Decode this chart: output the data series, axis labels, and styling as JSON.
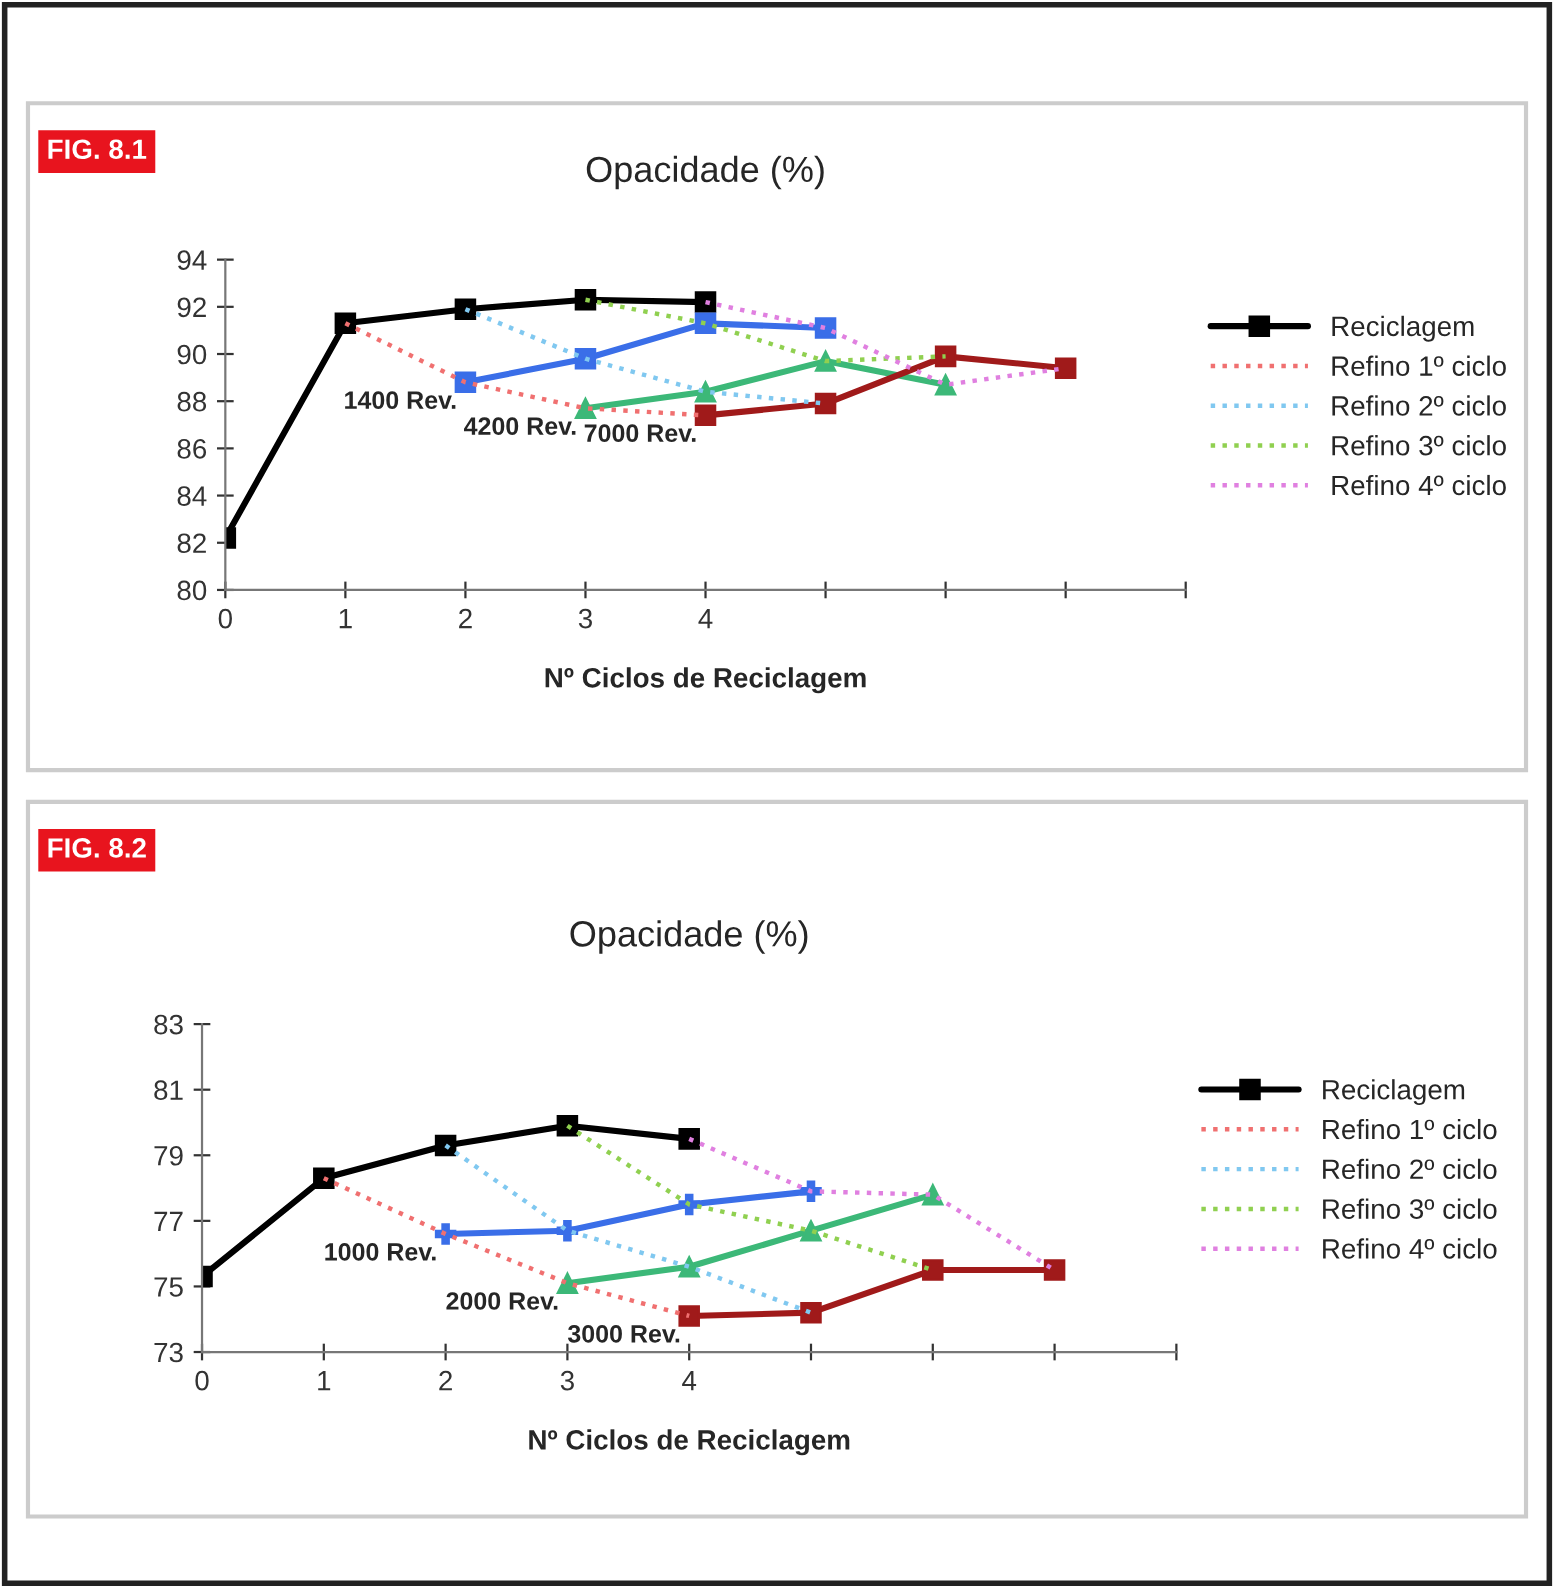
{
  "chart_data": [
    {
      "type": "line",
      "title": "Opacidade (%)",
      "xlabel": "Nº Ciclos de Reciclagem",
      "xlim": [
        0,
        8
      ],
      "xticks": [
        0,
        1,
        2,
        3,
        4,
        {
          "value": 5,
          "label": null
        },
        {
          "value": 6,
          "label": null
        },
        {
          "value": 7,
          "label": null
        },
        {
          "value": 8,
          "label": null
        }
      ],
      "ylim": [
        80,
        94
      ],
      "yticks": [
        80,
        82,
        84,
        86,
        88,
        90,
        92,
        94
      ],
      "grid": false,
      "legend": "right",
      "annotations": [
        "FIG. 8.1",
        {
          "text": "1400 Rev.",
          "x": 2,
          "y": 88.8
        },
        {
          "text": "4200 Rev.",
          "x": 3,
          "y": 87.7
        },
        {
          "text": "7000 Rev.",
          "x": 4,
          "y": 87.4
        }
      ],
      "series": [
        {
          "name": "Reciclagem",
          "color": "#000000",
          "x": [
            0,
            1,
            2,
            3,
            4
          ],
          "values": [
            82.2,
            91.3,
            91.9,
            92.3,
            92.2
          ],
          "marker": "square",
          "line_style": "solid"
        },
        {
          "color": "#3a6ee8",
          "x": [
            2,
            3,
            4,
            5
          ],
          "values": [
            88.8,
            89.8,
            91.3,
            91.1
          ],
          "marker": "square",
          "line_style": "solid"
        },
        {
          "color": "#3cb878",
          "x": [
            3,
            4,
            5,
            6
          ],
          "values": [
            87.7,
            88.4,
            89.7,
            88.7
          ],
          "marker": "triangle",
          "line_style": "solid"
        },
        {
          "color": "#a01a1a",
          "x": [
            4,
            5,
            6,
            7
          ],
          "values": [
            87.4,
            87.9,
            89.9,
            89.4
          ],
          "marker": "square",
          "line_style": "solid"
        },
        {
          "name": "Refino 1º ciclo",
          "color": "#f07070",
          "x": [
            1,
            2,
            3,
            4
          ],
          "values": [
            91.3,
            88.8,
            87.7,
            87.4
          ],
          "marker": "none",
          "line_style": "dotted"
        },
        {
          "name": "Refino 2º ciclo",
          "color": "#80c8f0",
          "x": [
            2,
            3,
            4,
            5
          ],
          "values": [
            91.9,
            89.8,
            88.4,
            87.9
          ],
          "marker": "none",
          "line_style": "dotted"
        },
        {
          "name": "Refino 3º ciclo",
          "color": "#90d050",
          "x": [
            3,
            4,
            5,
            6
          ],
          "values": [
            92.3,
            91.3,
            89.7,
            89.9
          ],
          "marker": "none",
          "line_style": "dotted"
        },
        {
          "name": "Refino 4º ciclo",
          "color": "#e080e0",
          "x": [
            4,
            5,
            6,
            7
          ],
          "values": [
            92.2,
            91.1,
            88.7,
            89.4
          ],
          "marker": "none",
          "line_style": "dotted"
        }
      ]
    },
    {
      "type": "line",
      "title": "Opacidade (%)",
      "xlabel": "Nº Ciclos de Reciclagem",
      "xlim": [
        0,
        8
      ],
      "xticks": [
        0,
        1,
        2,
        3,
        4,
        {
          "value": 5,
          "label": null
        },
        {
          "value": 6,
          "label": null
        },
        {
          "value": 7,
          "label": null
        },
        {
          "value": 8,
          "label": null
        }
      ],
      "ylim": [
        73,
        83
      ],
      "yticks": [
        73,
        75,
        77,
        79,
        81,
        83
      ],
      "grid": false,
      "legend": "right",
      "annotations": [
        "FIG. 8.2",
        {
          "text": "1000 Rev.",
          "x": 2,
          "y": 76.6
        },
        {
          "text": "2000 Rev.",
          "x": 3,
          "y": 75.1
        },
        {
          "text": "3000 Rev.",
          "x": 4,
          "y": 74.1
        }
      ],
      "series": [
        {
          "name": "Reciclagem",
          "color": "#000000",
          "x": [
            0,
            1,
            2,
            3,
            4
          ],
          "values": [
            75.3,
            78.3,
            79.3,
            79.9,
            79.5
          ],
          "marker": "square",
          "line_style": "solid"
        },
        {
          "color": "#3a6ee8",
          "x": [
            2,
            3,
            4,
            5
          ],
          "values": [
            76.6,
            76.7,
            77.5,
            77.9
          ],
          "marker": "cross",
          "line_style": "solid"
        },
        {
          "color": "#3cb878",
          "x": [
            3,
            4,
            5,
            6
          ],
          "values": [
            75.1,
            75.6,
            76.7,
            77.8
          ],
          "marker": "triangle",
          "line_style": "solid"
        },
        {
          "color": "#a01a1a",
          "x": [
            4,
            5,
            6,
            7
          ],
          "values": [
            74.1,
            74.2,
            75.5,
            75.5
          ],
          "marker": "square",
          "line_style": "solid"
        },
        {
          "name": "Refino 1º ciclo",
          "color": "#f07070",
          "x": [
            1,
            2,
            3,
            4
          ],
          "values": [
            78.3,
            76.6,
            75.1,
            74.1
          ],
          "marker": "none",
          "line_style": "dotted"
        },
        {
          "name": "Refino 2º ciclo",
          "color": "#80c8f0",
          "x": [
            2,
            3,
            4,
            5
          ],
          "values": [
            79.3,
            76.7,
            75.6,
            74.2
          ],
          "marker": "none",
          "line_style": "dotted"
        },
        {
          "name": "Refino 3º ciclo",
          "color": "#90d050",
          "x": [
            3,
            4,
            5,
            6
          ],
          "values": [
            79.9,
            77.5,
            76.7,
            75.5
          ],
          "marker": "none",
          "line_style": "dotted"
        },
        {
          "name": "Refino 4º ciclo",
          "color": "#e080e0",
          "x": [
            4,
            5,
            6,
            7
          ],
          "values": [
            79.5,
            77.9,
            77.8,
            75.5
          ],
          "marker": "none",
          "line_style": "dotted"
        }
      ]
    }
  ]
}
